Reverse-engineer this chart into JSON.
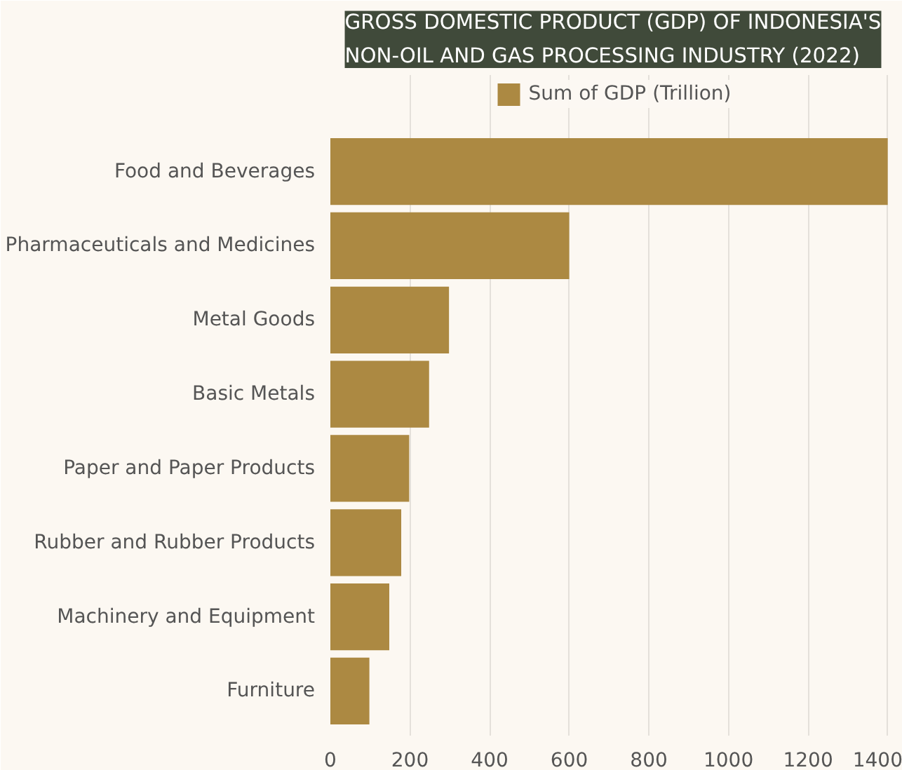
{
  "chart_data": {
    "type": "bar",
    "orientation": "horizontal",
    "title": "GROSS DOMESTIC PRODUCT (GDP) OF INDONESIA'S NON-OIL AND GAS PROCESSING INDUSTRY (2022)",
    "categories": [
      "Food and Beverages",
      "Pharmaceuticals and Medicines",
      "Metal Goods",
      "Basic Metals",
      "Paper and Paper Products",
      "Rubber and Rubber Products",
      "Machinery and Equipment",
      "Furniture"
    ],
    "series": [
      {
        "name": "Sum of GDP (Trillion)",
        "color": "#ac8942",
        "values": [
          1400,
          600,
          298,
          248,
          198,
          178,
          148,
          98
        ]
      }
    ],
    "xlim": [
      0,
      1420
    ],
    "xticks": [
      0,
      200,
      400,
      600,
      800,
      1000,
      1200,
      1400
    ],
    "grid": "x",
    "legend": "top"
  }
}
